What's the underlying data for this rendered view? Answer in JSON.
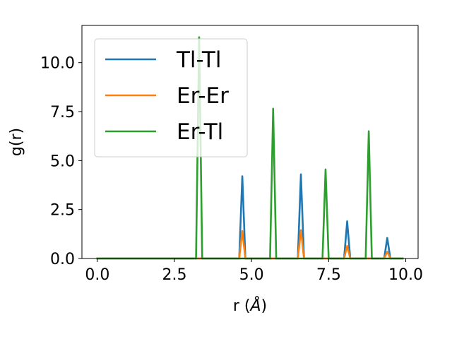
{
  "chart_data": {
    "type": "line",
    "xlabel": "r (Å)",
    "ylabel": "g(r)",
    "xlim": [
      -0.5,
      10.4
    ],
    "ylim": [
      0,
      11.9
    ],
    "xticks": [
      0.0,
      2.5,
      5.0,
      7.5,
      10.0
    ],
    "xtick_labels": [
      "0.0",
      "2.5",
      "5.0",
      "7.5",
      "10.0"
    ],
    "yticks": [
      0.0,
      2.5,
      5.0,
      7.5,
      10.0
    ],
    "ytick_labels": [
      "0.0",
      "2.5",
      "5.0",
      "7.5",
      "10.0"
    ],
    "grid": false,
    "legend_position": "top-left",
    "series": [
      {
        "name": "Tl-Tl",
        "color": "#1f77b4",
        "x": [
          0.0,
          4.6,
          4.7,
          4.8,
          6.5,
          6.6,
          6.7,
          8.0,
          8.1,
          8.2,
          9.3,
          9.4,
          9.5,
          9.9
        ],
        "y": [
          0,
          0,
          4.2,
          0,
          0,
          4.3,
          0,
          0,
          1.9,
          0,
          0,
          1.05,
          0,
          0
        ]
      },
      {
        "name": "Er-Er",
        "color": "#ff7f0e",
        "x": [
          0.0,
          4.6,
          4.7,
          4.8,
          6.5,
          6.6,
          6.7,
          8.0,
          8.1,
          8.2,
          9.3,
          9.4,
          9.5,
          9.9
        ],
        "y": [
          0,
          0,
          1.4,
          0,
          0,
          1.45,
          0,
          0,
          0.65,
          0,
          0,
          0.35,
          0,
          0
        ]
      },
      {
        "name": "Er-Tl",
        "color": "#2ca02c",
        "x": [
          0.0,
          3.2,
          3.3,
          3.4,
          5.6,
          5.7,
          5.8,
          7.3,
          7.4,
          7.5,
          8.7,
          8.8,
          8.9,
          9.9
        ],
        "y": [
          0,
          0,
          11.3,
          0,
          0,
          7.65,
          0,
          0,
          4.55,
          0,
          0,
          6.5,
          0,
          0
        ]
      }
    ]
  }
}
